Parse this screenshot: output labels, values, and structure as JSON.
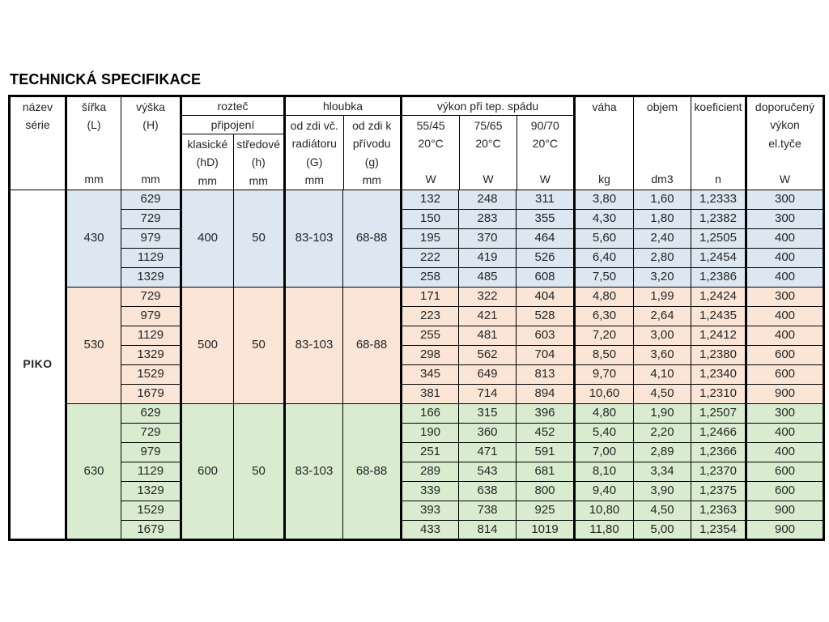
{
  "title": "TECHNICKÁ SPECIFIKACE",
  "series_name": "PIKO",
  "colors": {
    "group_blue": "#dce7f2",
    "group_peach": "#fbe5d7",
    "group_green": "#daecd0",
    "border": "#000000",
    "text": "#262626"
  },
  "header": {
    "name": {
      "label": "název\nsérie"
    },
    "width": {
      "label": "šířka\n(L)",
      "unit": "mm"
    },
    "height": {
      "label": "výška\n(H)",
      "unit": "mm"
    },
    "roztec": {
      "group": "rozteč",
      "subgroup": "připojení",
      "cols": [
        {
          "label": "klasické\n(hD)",
          "unit": "mm"
        },
        {
          "label": "středové\n(h)",
          "unit": "mm"
        }
      ]
    },
    "hloubka": {
      "group": "hloubka",
      "cols": [
        {
          "label": "od zdi vč.\nradiátoru\n(G)",
          "unit": "mm"
        },
        {
          "label": "od zdi k\npřívodu\n(g)",
          "unit": "mm"
        }
      ]
    },
    "vykon": {
      "group": "výkon při tep.  spádu",
      "cols": [
        {
          "label": "55/45\n20°C",
          "unit": "W"
        },
        {
          "label": "75/65\n20°C",
          "unit": "W"
        },
        {
          "label": "90/70\n20°C",
          "unit": "W"
        }
      ]
    },
    "vaha": {
      "label": "váha",
      "unit": "kg"
    },
    "objem": {
      "label": "objem",
      "unit": "dm3"
    },
    "koeficient": {
      "label": "koeficient",
      "unit": "n"
    },
    "doporuceny": {
      "label": "doporučený\nvýkon\nel.tyče",
      "unit": "W"
    }
  },
  "groups": [
    {
      "color": "#dce7f2",
      "sirka": "430",
      "klasicke": "400",
      "stredove": "50",
      "hloubka_g": "83-103",
      "hloubka_g2": "68-88",
      "rows": [
        [
          "629",
          "132",
          "248",
          "311",
          "3,80",
          "1,60",
          "1,2333",
          "300"
        ],
        [
          "729",
          "150",
          "283",
          "355",
          "4,30",
          "1,80",
          "1,2382",
          "300"
        ],
        [
          "979",
          "195",
          "370",
          "464",
          "5,60",
          "2,40",
          "1,2505",
          "400"
        ],
        [
          "1129",
          "222",
          "419",
          "526",
          "6,40",
          "2,80",
          "1,2454",
          "400"
        ],
        [
          "1329",
          "258",
          "485",
          "608",
          "7,50",
          "3,20",
          "1,2386",
          "400"
        ]
      ]
    },
    {
      "color": "#fbe5d7",
      "sirka": "530",
      "klasicke": "500",
      "stredove": "50",
      "hloubka_g": "83-103",
      "hloubka_g2": "68-88",
      "rows": [
        [
          "729",
          "171",
          "322",
          "404",
          "4,80",
          "1,99",
          "1,2424",
          "300"
        ],
        [
          "979",
          "223",
          "421",
          "528",
          "6,30",
          "2,64",
          "1,2435",
          "400"
        ],
        [
          "1129",
          "255",
          "481",
          "603",
          "7,20",
          "3,00",
          "1,2412",
          "400"
        ],
        [
          "1329",
          "298",
          "562",
          "704",
          "8,50",
          "3,60",
          "1,2380",
          "600"
        ],
        [
          "1529",
          "345",
          "649",
          "813",
          "9,70",
          "4,10",
          "1,2340",
          "600"
        ],
        [
          "1679",
          "381",
          "714",
          "894",
          "10,60",
          "4,50",
          "1,2310",
          "900"
        ]
      ]
    },
    {
      "color": "#daecd0",
      "sirka": "630",
      "klasicke": "600",
      "stredove": "50",
      "hloubka_g": "83-103",
      "hloubka_g2": "68-88",
      "rows": [
        [
          "629",
          "166",
          "315",
          "396",
          "4,80",
          "1,90",
          "1,2507",
          "300"
        ],
        [
          "729",
          "190",
          "360",
          "452",
          "5,40",
          "2,20",
          "1,2466",
          "400"
        ],
        [
          "979",
          "251",
          "471",
          "591",
          "7,00",
          "2,89",
          "1,2366",
          "400"
        ],
        [
          "1129",
          "289",
          "543",
          "681",
          "8,10",
          "3,34",
          "1,2370",
          "600"
        ],
        [
          "1329",
          "339",
          "638",
          "800",
          "9,40",
          "3,90",
          "1,2375",
          "600"
        ],
        [
          "1529",
          "393",
          "738",
          "925",
          "10,80",
          "4,50",
          "1,2363",
          "900"
        ],
        [
          "1679",
          "433",
          "814",
          "1019",
          "11,80",
          "5,00",
          "1,2354",
          "900"
        ]
      ]
    }
  ]
}
